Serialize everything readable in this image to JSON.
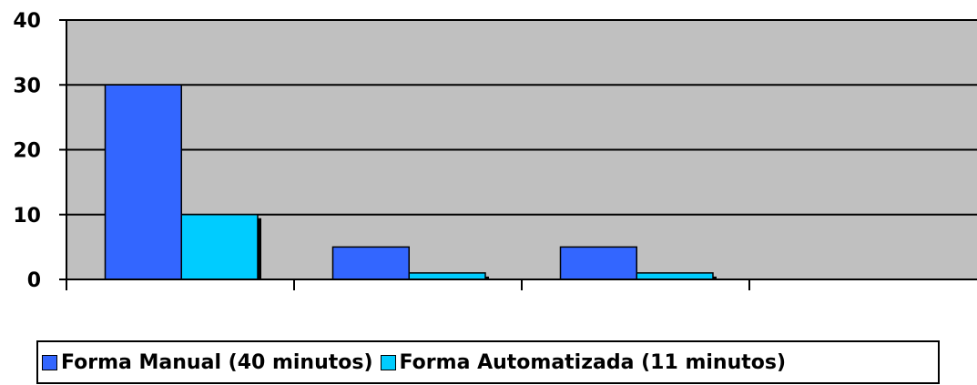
{
  "chart_data": {
    "type": "bar",
    "categories": [
      "",
      "",
      "",
      ""
    ],
    "series": [
      {
        "name": "Forma Manual (40 minutos)",
        "values": [
          30,
          5,
          5,
          null
        ]
      },
      {
        "name": "Forma Automatizada (11 minutos)",
        "values": [
          10,
          1,
          1,
          null
        ]
      }
    ],
    "ylim": [
      0,
      40
    ],
    "yticks": [
      "0",
      "10",
      "20",
      "30",
      "40"
    ],
    "grid": true,
    "legend_position": "bottom",
    "plot_background": "#c0c0c0",
    "colors": [
      "#3366ff",
      "#00ccff"
    ]
  }
}
